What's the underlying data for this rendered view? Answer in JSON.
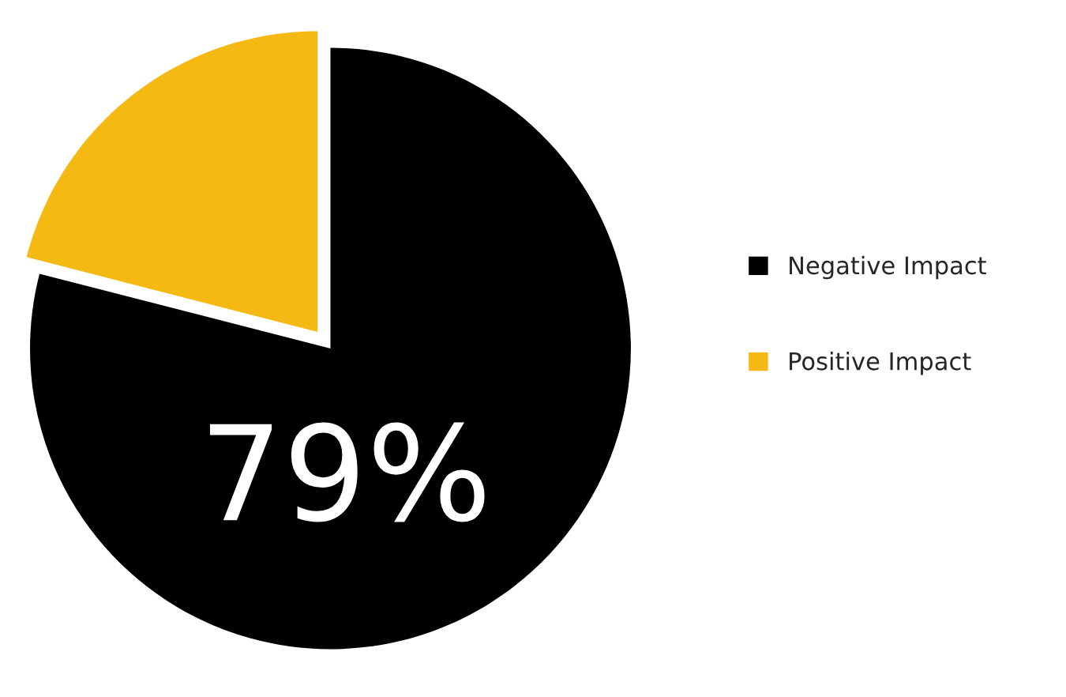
{
  "chart_data": {
    "type": "pie",
    "categories": [
      "Negative Impact",
      "Positive Impact"
    ],
    "values": [
      79,
      21
    ],
    "colors": [
      "#000000",
      "#f5b914"
    ],
    "value_labels": [
      "79%",
      null
    ],
    "legend": "right"
  }
}
